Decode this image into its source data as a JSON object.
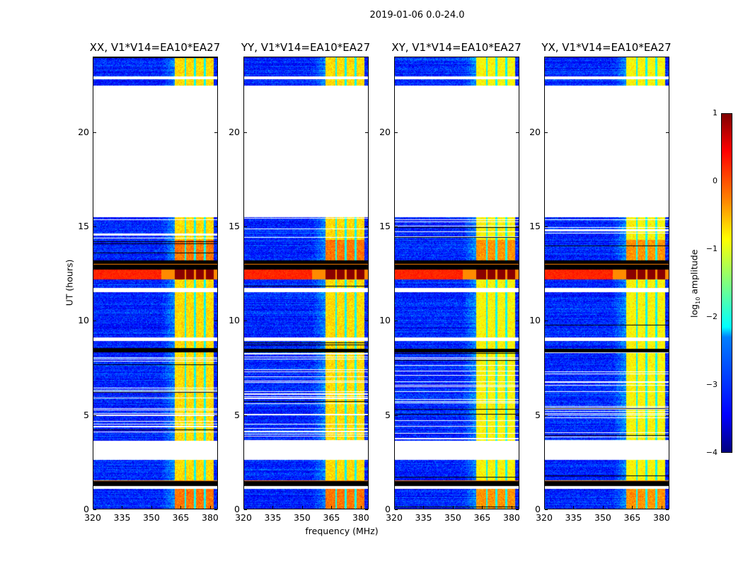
{
  "chart_data": {
    "type": "heatmap",
    "title": "2019-01-06 0.0-24.0",
    "xlabel": "frequency (MHz)",
    "ylabel": "UT (hours)",
    "xlim": [
      320,
      384
    ],
    "ylim": [
      0,
      24
    ],
    "xticks": [
      "320",
      "335",
      "350",
      "365",
      "380"
    ],
    "xtick_values": [
      320,
      335,
      350,
      365,
      380
    ],
    "yticks": [
      "0",
      "5",
      "10",
      "15",
      "20"
    ],
    "ytick_values": [
      0,
      5,
      10,
      15,
      20
    ],
    "panels": [
      {
        "title": "XX, V1*V14=EA10*EA27"
      },
      {
        "title": "YY, V1*V14=EA10*EA27"
      },
      {
        "title": "XY, V1*V14=EA10*EA27"
      },
      {
        "title": "YX, V1*V14=EA10*EA27"
      }
    ],
    "colormap": "jet",
    "colorbar": {
      "label_main": "log",
      "label_sub": "10",
      "label_rest": " amplitude",
      "range": [
        -4,
        1
      ],
      "ticks": [
        "1",
        "0",
        "−1",
        "−2",
        "−3",
        "−4"
      ],
      "tick_values": [
        1,
        0,
        -1,
        -2,
        -3,
        -4
      ]
    },
    "background_level_log10": -3.2,
    "rfi_band_mhz": [
      [
        362,
        367
      ],
      [
        368,
        372
      ],
      [
        373,
        377
      ],
      [
        378,
        382
      ]
    ],
    "rfi_band_level_log10": -0.7,
    "time_segments_hours": [
      {
        "from": 0,
        "to": 1.05,
        "kind": "data-hot"
      },
      {
        "from": 1.05,
        "to": 1.2,
        "kind": "flagged"
      },
      {
        "from": 1.2,
        "to": 1.5,
        "kind": "black"
      },
      {
        "from": 1.5,
        "to": 2.6,
        "kind": "data"
      },
      {
        "from": 2.6,
        "to": 3.6,
        "kind": "flagged"
      },
      {
        "from": 3.6,
        "to": 8.3,
        "kind": "data-striped"
      },
      {
        "from": 8.3,
        "to": 8.5,
        "kind": "black"
      },
      {
        "from": 8.5,
        "to": 8.9,
        "kind": "data"
      },
      {
        "from": 8.9,
        "to": 9.1,
        "kind": "flagged"
      },
      {
        "from": 9.1,
        "to": 11.5,
        "kind": "data"
      },
      {
        "from": 11.5,
        "to": 11.75,
        "kind": "flagged"
      },
      {
        "from": 11.75,
        "to": 12.2,
        "kind": "data"
      },
      {
        "from": 12.2,
        "to": 12.7,
        "kind": "saturated"
      },
      {
        "from": 12.7,
        "to": 13.2,
        "kind": "black"
      },
      {
        "from": 13.2,
        "to": 14.3,
        "kind": "data-hot"
      },
      {
        "from": 14.3,
        "to": 15.5,
        "kind": "data-striped"
      },
      {
        "from": 15.5,
        "to": 22.5,
        "kind": "flagged"
      },
      {
        "from": 22.5,
        "to": 22.85,
        "kind": "data"
      },
      {
        "from": 22.85,
        "to": 23.0,
        "kind": "flagged"
      },
      {
        "from": 23.0,
        "to": 24,
        "kind": "data"
      }
    ]
  }
}
